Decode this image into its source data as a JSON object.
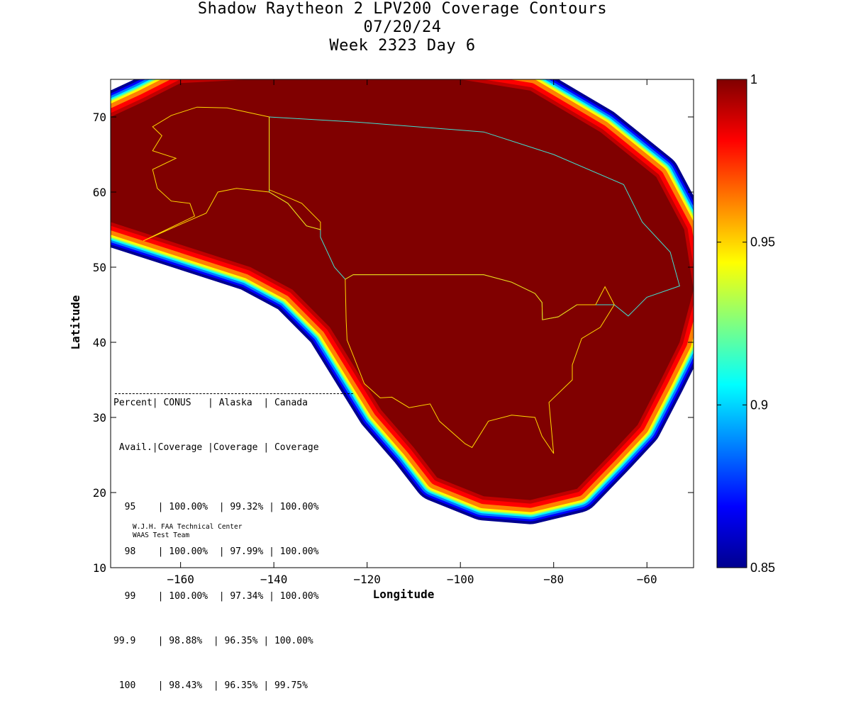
{
  "header": {
    "title_line1": "Shadow Raytheon 2 LPV200 Coverage Contours",
    "title_line2": "07/20/24",
    "title_line3": "Week 2323 Day 6"
  },
  "stats_table": {
    "header_row1": "Percent| CONUS   | Alaska  | Canada",
    "header_row2": " Avail.|Coverage |Coverage | Coverage",
    "rows": [
      "  95    | 100.00%  | 99.32% | 100.00%",
      "  98    | 100.00%  | 97.99% | 100.00%",
      "  99    | 100.00%  | 97.34% | 100.00%",
      "99.9    | 98.88%  | 96.35% | 100.00%",
      " 100    | 98.43%  | 96.35% | 99.75%"
    ]
  },
  "credits": {
    "line1": "W.J.H. FAA Technical Center",
    "line2": "WAAS Test Team"
  },
  "colors": {
    "max_availability": "#800000",
    "colormap": [
      "#00008f",
      "#0000ff",
      "#0080ff",
      "#00ffff",
      "#80ff80",
      "#ffff00",
      "#ff8000",
      "#ff0000",
      "#800000"
    ]
  },
  "chart_data": {
    "type": "heatmap",
    "xlabel": "Longitude",
    "ylabel": "Latitude",
    "xlim": [
      -175,
      -50
    ],
    "ylim": [
      10,
      75
    ],
    "x_ticks": [
      -160,
      -140,
      -120,
      -100,
      -80,
      -60
    ],
    "x_tick_labels": [
      "−160",
      "−140",
      "−120",
      "−100",
      "−80",
      "−60"
    ],
    "y_ticks": [
      10,
      20,
      30,
      40,
      50,
      60,
      70
    ],
    "y_tick_labels": [
      "10",
      "20",
      "30",
      "40",
      "50",
      "60",
      "70"
    ],
    "colorbar": {
      "range": [
        0.85,
        1
      ],
      "ticks": [
        0.85,
        0.9,
        0.95,
        1
      ],
      "tick_labels": [
        "0.85",
        "0.9",
        "0.95",
        "1"
      ]
    },
    "coverage_boundary_lonlat": [
      [
        -175,
        70
      ],
      [
        -168,
        72
      ],
      [
        -160,
        74.5
      ],
      [
        -145,
        75
      ],
      [
        -120,
        75
      ],
      [
        -100,
        75
      ],
      [
        -85,
        73.5
      ],
      [
        -70,
        68
      ],
      [
        -58,
        62
      ],
      [
        -52,
        55
      ],
      [
        -50,
        47
      ],
      [
        -53,
        40
      ],
      [
        -57,
        35
      ],
      [
        -62,
        29
      ],
      [
        -68,
        25
      ],
      [
        -75,
        20.5
      ],
      [
        -85,
        19
      ],
      [
        -95,
        19.5
      ],
      [
        -105,
        22
      ],
      [
        -110,
        26
      ],
      [
        -117,
        31
      ],
      [
        -122,
        36
      ],
      [
        -128,
        42
      ],
      [
        -136,
        47
      ],
      [
        -145,
        50
      ],
      [
        -160,
        53
      ],
      [
        -175,
        56
      ]
    ],
    "conus_outline_lonlat": [
      [
        -124.7,
        48.4
      ],
      [
        -123,
        49
      ],
      [
        -95,
        49
      ],
      [
        -89,
        48
      ],
      [
        -84,
        46.5
      ],
      [
        -82.5,
        45.3
      ],
      [
        -82.4,
        43
      ],
      [
        -79,
        43.4
      ],
      [
        -75,
        45
      ],
      [
        -71,
        45
      ],
      [
        -69,
        47.4
      ],
      [
        -67,
        45
      ],
      [
        -70,
        42
      ],
      [
        -74,
        40.5
      ],
      [
        -76,
        37
      ],
      [
        -76,
        35
      ],
      [
        -81,
        32
      ],
      [
        -80,
        25.2
      ],
      [
        -82.5,
        27.5
      ],
      [
        -84,
        30
      ],
      [
        -89,
        30.3
      ],
      [
        -94,
        29.5
      ],
      [
        -97.5,
        26
      ],
      [
        -99,
        26.5
      ],
      [
        -104.5,
        29.5
      ],
      [
        -106.5,
        31.8
      ],
      [
        -111,
        31.3
      ],
      [
        -114.7,
        32.7
      ],
      [
        -117.2,
        32.6
      ],
      [
        -120.6,
        34.5
      ],
      [
        -122.5,
        37.5
      ],
      [
        -124.3,
        40.3
      ],
      [
        -124.5,
        43
      ],
      [
        -124.7,
        48.4
      ]
    ],
    "alaska_outline_lonlat": [
      [
        -141,
        70
      ],
      [
        -150,
        71.2
      ],
      [
        -156.5,
        71.3
      ],
      [
        -162,
        70.2
      ],
      [
        -166,
        68.7
      ],
      [
        -164,
        67.5
      ],
      [
        -166,
        65.5
      ],
      [
        -161,
        64.5
      ],
      [
        -166,
        63
      ],
      [
        -165,
        60.5
      ],
      [
        -162,
        58.8
      ],
      [
        -158,
        58.5
      ],
      [
        -157,
        56.8
      ],
      [
        -163,
        55
      ],
      [
        -168,
        53.5
      ],
      [
        -160,
        55.7
      ],
      [
        -154.5,
        57.2
      ],
      [
        -152,
        60
      ],
      [
        -148,
        60.5
      ],
      [
        -141,
        60
      ],
      [
        -137,
        58.5
      ],
      [
        -135,
        57
      ],
      [
        -133,
        55.5
      ],
      [
        -130,
        55
      ],
      [
        -130,
        56
      ],
      [
        -134,
        58.5
      ],
      [
        -137,
        59.3
      ],
      [
        -141,
        60.3
      ],
      [
        -141,
        70
      ]
    ],
    "canada_outline_lonlat": [
      [
        -141,
        70
      ],
      [
        -122,
        69.3
      ],
      [
        -95,
        68
      ],
      [
        -80,
        65
      ],
      [
        -65,
        61
      ],
      [
        -61,
        56
      ],
      [
        -55,
        52
      ],
      [
        -53,
        47.5
      ],
      [
        -60,
        46
      ],
      [
        -64,
        43.5
      ],
      [
        -67,
        45
      ],
      [
        -71,
        45
      ],
      [
        -75,
        45
      ],
      [
        -79,
        43.4
      ],
      [
        -82.4,
        43
      ],
      [
        -82.5,
        45.3
      ],
      [
        -84,
        46.5
      ],
      [
        -89,
        48
      ],
      [
        -95,
        49
      ],
      [
        -123,
        49
      ],
      [
        -124.7,
        48.4
      ],
      [
        -127,
        50
      ],
      [
        -130,
        54
      ],
      [
        -130,
        55
      ],
      [
        -133,
        55.5
      ],
      [
        -135,
        57
      ],
      [
        -137,
        58.5
      ],
      [
        -141,
        60
      ],
      [
        -141,
        70
      ]
    ]
  }
}
